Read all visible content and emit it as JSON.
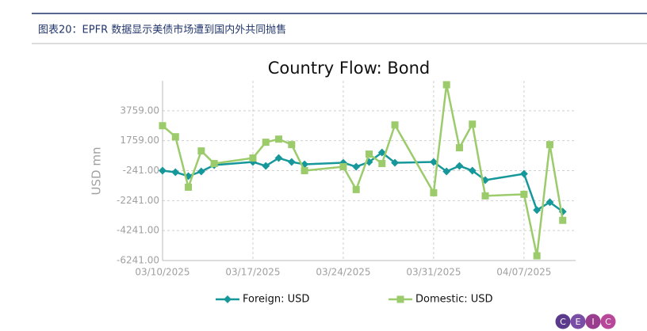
{
  "header": {
    "title": "图表20：EPFR 数据显示美债市场遭到国内外共同抛售"
  },
  "logo": [
    "C",
    "E",
    "I",
    "C"
  ],
  "chart_data": {
    "type": "line",
    "title": "Country Flow: Bond",
    "ylabel": "USD mn",
    "x": [
      "03/10/2025",
      "03/11/2025",
      "03/12/2025",
      "03/13/2025",
      "03/14/2025",
      "03/17/2025",
      "03/18/2025",
      "03/19/2025",
      "03/20/2025",
      "03/21/2025",
      "03/24/2025",
      "03/25/2025",
      "03/26/2025",
      "03/27/2025",
      "03/28/2025",
      "03/31/2025",
      "04/01/2025",
      "04/02/2025",
      "04/03/2025",
      "04/04/2025",
      "04/07/2025",
      "04/08/2025",
      "04/09/2025",
      "04/10/2025"
    ],
    "series": [
      {
        "name": "Foreign: USD",
        "color": "#16989a",
        "marker": "diamond",
        "values": [
          -241,
          -346,
          -609,
          -294,
          127,
          338,
          75,
          601,
          338,
          180,
          285,
          22,
          338,
          969,
          285,
          338,
          -294,
          75,
          -241,
          -873,
          -452,
          -2873,
          -2346,
          -2978
        ]
      },
      {
        "name": "Domestic: USD",
        "color": "#9bcb6b",
        "marker": "square",
        "values": [
          2759,
          2022,
          -1346,
          1075,
          233,
          601,
          1654,
          1864,
          1496,
          -241,
          22,
          -1504,
          864,
          233,
          2812,
          -1715,
          5496,
          1285,
          2864,
          -1925,
          -1820,
          -5925,
          1496,
          -3557
        ]
      }
    ],
    "xlim": [
      "03/10/2025",
      "04/11/2025"
    ],
    "xticks": [
      "03/10/2025",
      "03/17/2025",
      "03/24/2025",
      "03/31/2025",
      "04/07/2025"
    ],
    "ylim": [
      -6241,
      5759
    ],
    "yticks": [
      {
        "value": -6241,
        "label": "-6241.00"
      },
      {
        "value": -4241,
        "label": "-4241.00"
      },
      {
        "value": -2241,
        "label": "-2241.00"
      },
      {
        "value": -241,
        "label": "-241.00"
      },
      {
        "value": 1759,
        "label": "1759.00"
      },
      {
        "value": 3759,
        "label": "3759.00"
      }
    ],
    "grid": true,
    "legend": "bottom"
  }
}
